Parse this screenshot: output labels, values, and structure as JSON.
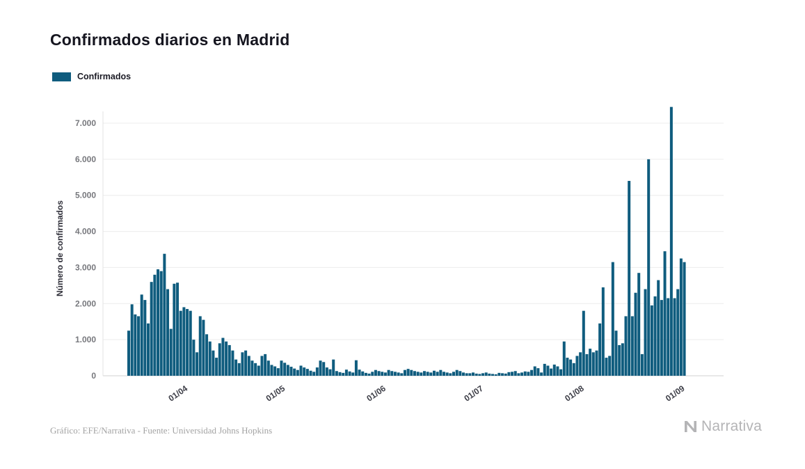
{
  "title": "Confirmados diarios en Madrid",
  "legend": {
    "label": "Confirmados",
    "color": "#0f5c7e"
  },
  "y_axis": {
    "label": "Número de confirmados",
    "ticks": [
      "7.000",
      "6.000",
      "5.000",
      "4.000",
      "3.000",
      "2.000",
      "1.000",
      "0"
    ]
  },
  "x_axis": {
    "ticks": [
      "01/04",
      "01/05",
      "01/06",
      "01/07",
      "01/08",
      "01/09"
    ]
  },
  "footer": {
    "credit": "Gráfico: EFE/Narrativa - Fuente: Universidad Johns Hopkins"
  },
  "brand": {
    "name": "Narrativa",
    "icon": "narrativa-n-icon",
    "color": "#b4b4b6"
  },
  "chart_data": {
    "type": "bar",
    "title": "Confirmados diarios en Madrid",
    "series_name": "Confirmados",
    "xlabel": "",
    "ylabel": "Número de confirmados",
    "ylim": [
      0,
      7000
    ],
    "grid": true,
    "grid_interval": 1000,
    "legend_position": "top-left",
    "bar_color": "#0f5c7e",
    "x": [
      "18/03",
      "19/03",
      "20/03",
      "21/03",
      "22/03",
      "23/03",
      "24/03",
      "25/03",
      "26/03",
      "27/03",
      "28/03",
      "29/03",
      "30/03",
      "31/03",
      "01/04",
      "02/04",
      "03/04",
      "04/04",
      "05/04",
      "06/04",
      "07/04",
      "08/04",
      "09/04",
      "10/04",
      "11/04",
      "12/04",
      "13/04",
      "14/04",
      "15/04",
      "16/04",
      "17/04",
      "18/04",
      "19/04",
      "20/04",
      "21/04",
      "22/04",
      "23/04",
      "24/04",
      "25/04",
      "26/04",
      "27/04",
      "28/04",
      "29/04",
      "30/04",
      "01/05",
      "02/05",
      "03/05",
      "04/05",
      "05/05",
      "06/05",
      "07/05",
      "08/05",
      "09/05",
      "10/05",
      "11/05",
      "12/05",
      "13/05",
      "14/05",
      "15/05",
      "16/05",
      "17/05",
      "18/05",
      "19/05",
      "20/05",
      "21/05",
      "22/05",
      "23/05",
      "24/05",
      "25/05",
      "26/05",
      "27/05",
      "28/05",
      "29/05",
      "30/05",
      "31/05",
      "01/06",
      "02/06",
      "03/06",
      "04/06",
      "05/06",
      "06/06",
      "07/06",
      "08/06",
      "09/06",
      "10/06",
      "11/06",
      "12/06",
      "13/06",
      "14/06",
      "15/06",
      "16/06",
      "17/06",
      "18/06",
      "19/06",
      "20/06",
      "21/06",
      "22/06",
      "23/06",
      "24/06",
      "25/06",
      "26/06",
      "27/06",
      "28/06",
      "29/06",
      "30/06",
      "01/07",
      "02/07",
      "03/07",
      "04/07",
      "05/07",
      "06/07",
      "07/07",
      "08/07",
      "09/07",
      "10/07",
      "11/07",
      "12/07",
      "13/07",
      "14/07",
      "15/07",
      "16/07",
      "17/07",
      "18/07",
      "19/07",
      "20/07",
      "21/07",
      "22/07",
      "23/07",
      "24/07",
      "25/07",
      "26/07",
      "27/07",
      "28/07",
      "29/07",
      "30/07",
      "31/07",
      "01/08",
      "02/08",
      "03/08",
      "04/08",
      "05/08",
      "06/08",
      "07/08",
      "08/08",
      "09/08",
      "10/08",
      "11/08",
      "12/08",
      "13/08",
      "14/08",
      "15/08",
      "16/08",
      "17/08",
      "18/08",
      "19/08",
      "20/08",
      "21/08",
      "22/08",
      "23/08",
      "24/08",
      "25/08",
      "26/08",
      "27/08",
      "28/08",
      "29/08",
      "30/08",
      "31/08",
      "01/09",
      "02/09",
      "03/09",
      "04/09",
      "05/09"
    ],
    "values": [
      1250,
      1980,
      1700,
      1650,
      2250,
      2100,
      1450,
      2600,
      2800,
      2950,
      2900,
      3380,
      2400,
      1300,
      2550,
      2580,
      1800,
      1900,
      1850,
      1800,
      1000,
      650,
      1650,
      1550,
      1150,
      950,
      700,
      500,
      900,
      1050,
      950,
      850,
      700,
      450,
      350,
      650,
      700,
      550,
      420,
      350,
      280,
      550,
      600,
      420,
      300,
      260,
      210,
      420,
      360,
      300,
      250,
      200,
      160,
      280,
      230,
      190,
      140,
      110,
      230,
      420,
      380,
      230,
      180,
      450,
      130,
      100,
      80,
      170,
      120,
      90,
      430,
      170,
      120,
      80,
      60,
      110,
      160,
      130,
      110,
      90,
      160,
      130,
      110,
      90,
      70,
      160,
      190,
      160,
      130,
      110,
      90,
      130,
      110,
      90,
      140,
      110,
      160,
      110,
      90,
      70,
      110,
      160,
      130,
      90,
      70,
      70,
      90,
      60,
      50,
      70,
      90,
      60,
      50,
      40,
      80,
      70,
      60,
      100,
      110,
      130,
      70,
      90,
      120,
      110,
      160,
      260,
      210,
      90,
      330,
      280,
      200,
      310,
      260,
      180,
      950,
      500,
      450,
      350,
      550,
      650,
      1800,
      600,
      750,
      650,
      700,
      1450,
      2450,
      500,
      550,
      3150,
      1250,
      850,
      900,
      1650,
      5400,
      1650,
      2300,
      2850,
      600,
      2400,
      6000,
      1950,
      2200,
      2650,
      2100,
      3450,
      2150,
      7450,
      2150,
      2400,
      3250,
      3150
    ]
  }
}
